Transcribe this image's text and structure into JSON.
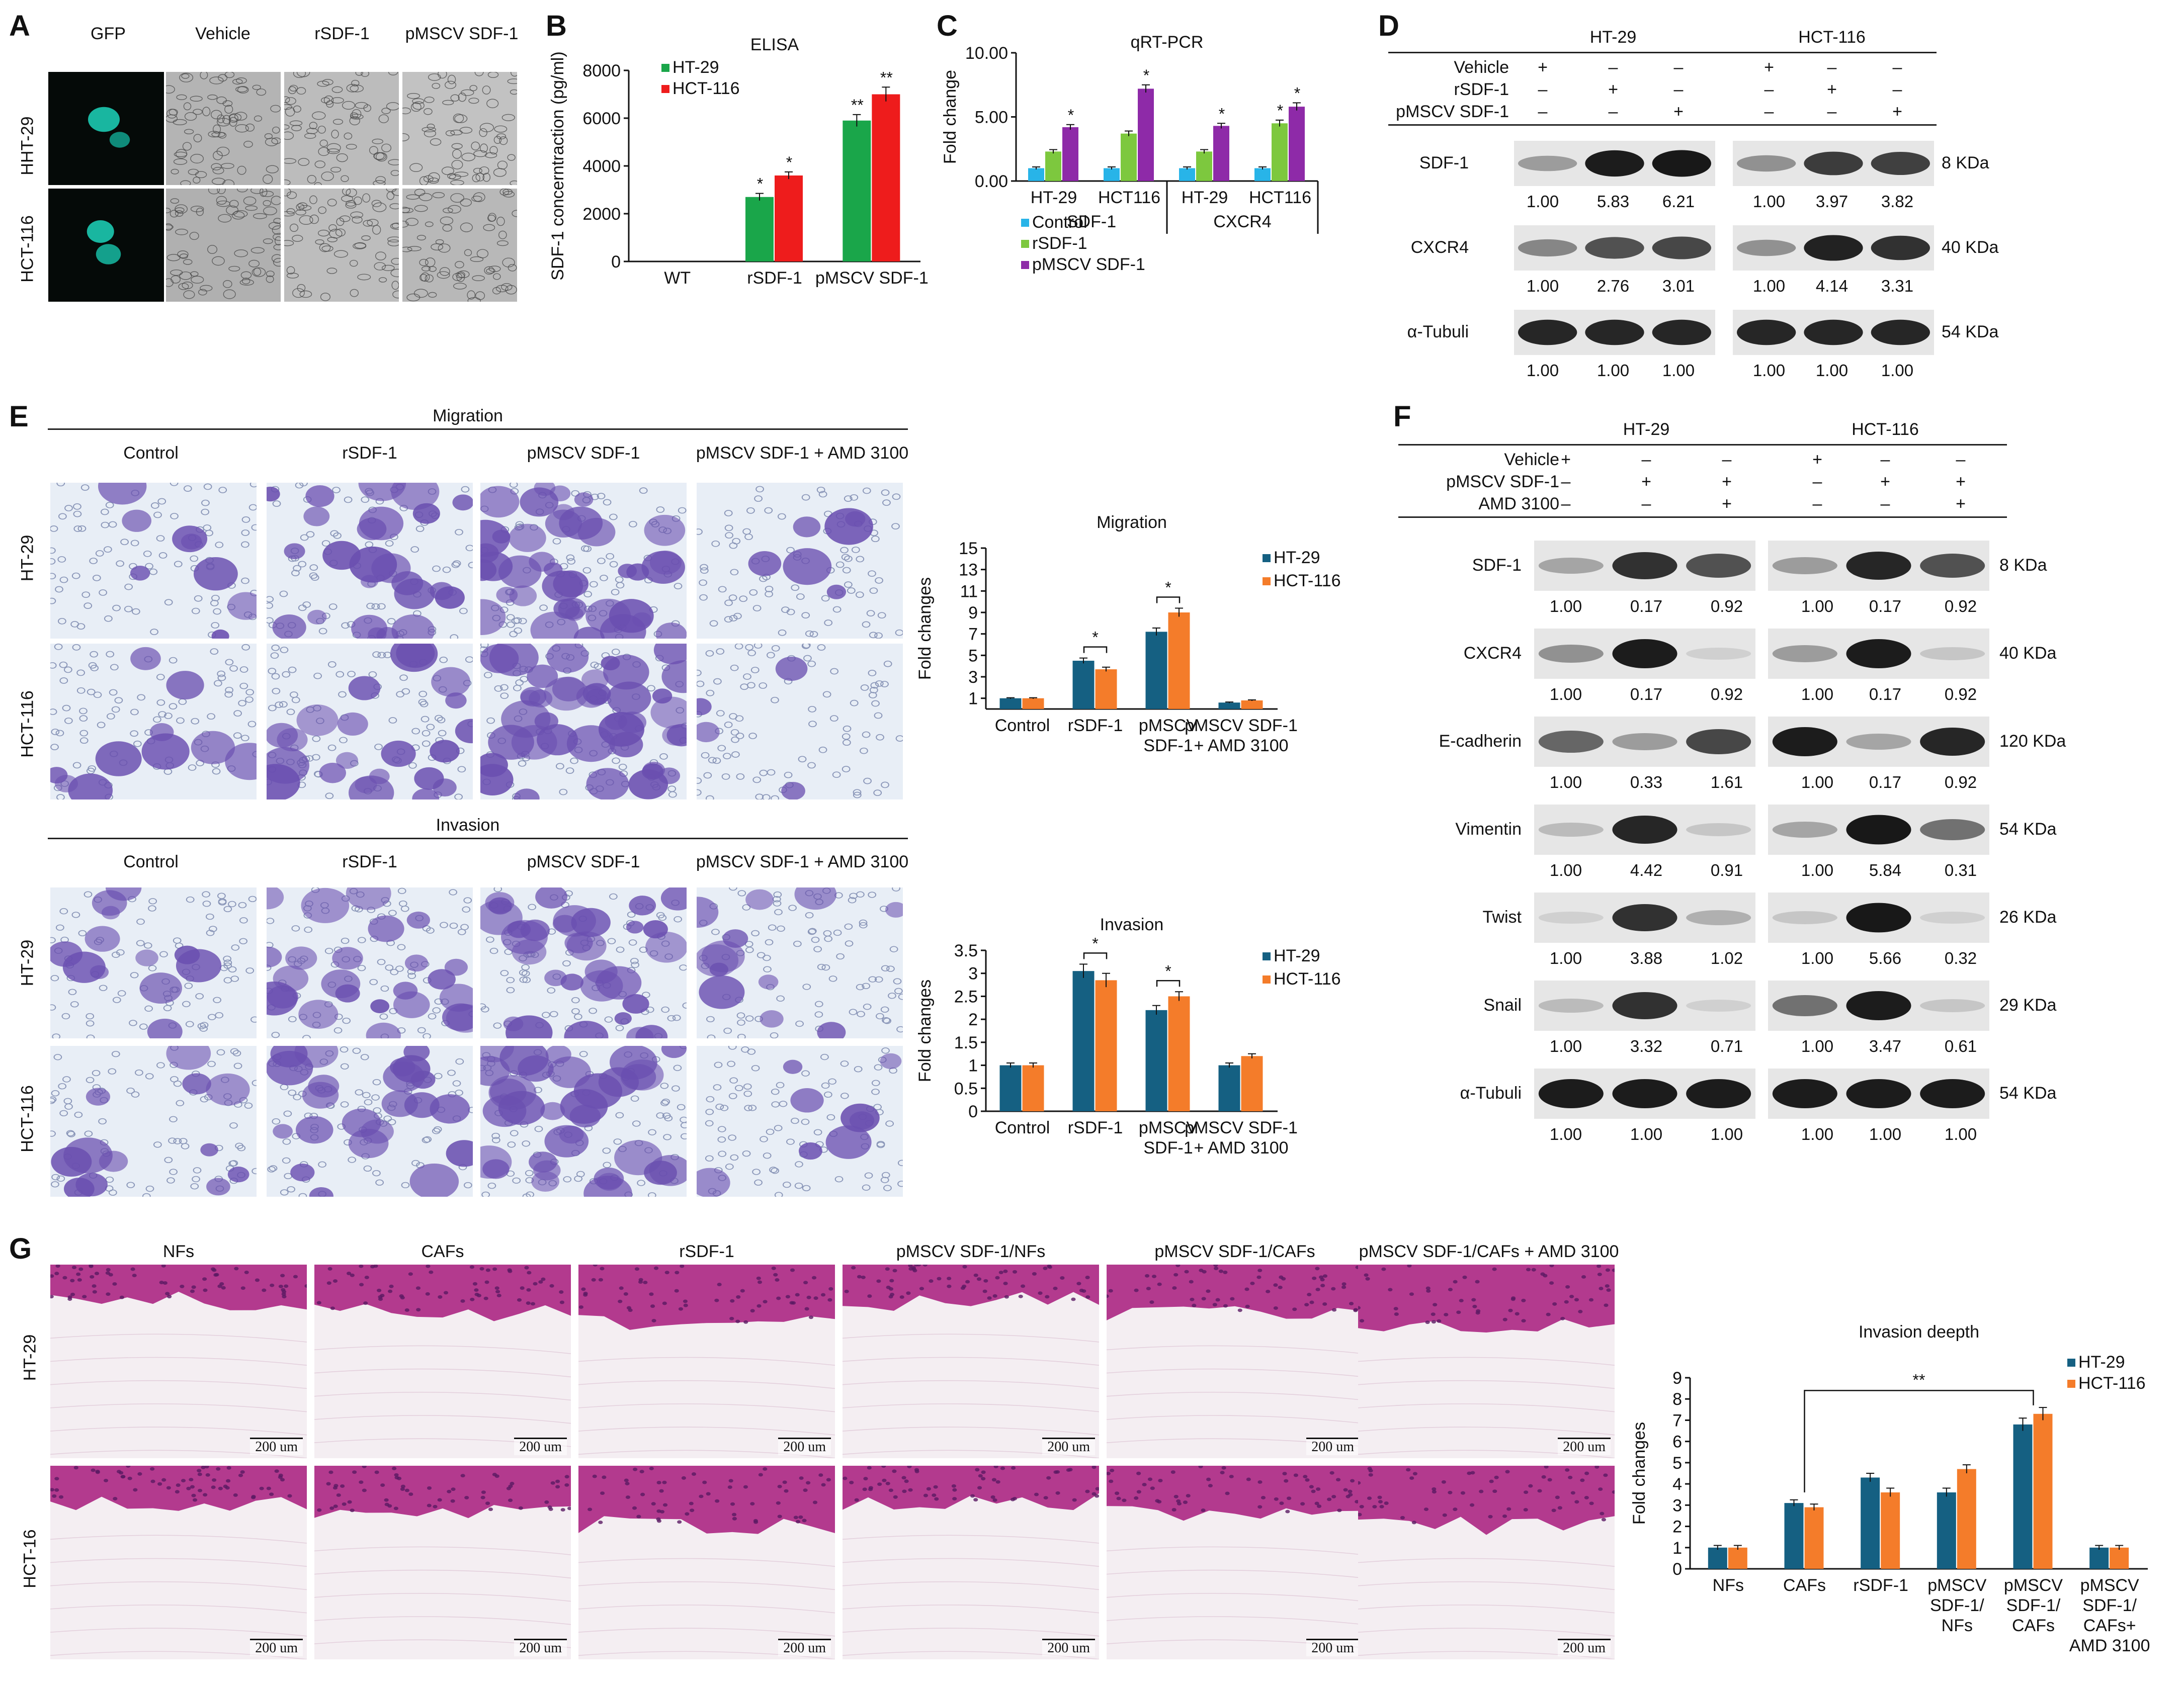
{
  "panels": {
    "A": {
      "letter": "A",
      "columns": [
        "GFP",
        "Vehicle",
        "rSDF-1",
        "pMSCV SDF-1"
      ],
      "rows": [
        "HHT-29",
        "HCT-116"
      ]
    },
    "B": {
      "letter": "B"
    },
    "C": {
      "letter": "C"
    },
    "D": {
      "letter": "D",
      "groups": [
        "HT-29",
        "HCT-116"
      ],
      "treatments": [
        {
          "name": "Vehicle",
          "marks": [
            "+",
            "–",
            "–",
            "+",
            "–",
            "–"
          ]
        },
        {
          "name": "rSDF-1",
          "marks": [
            "–",
            "+",
            "–",
            "–",
            "+",
            "–"
          ]
        },
        {
          "name": "pMSCV SDF-1",
          "marks": [
            "–",
            "–",
            "+",
            "–",
            "–",
            "+"
          ]
        }
      ],
      "blots": [
        {
          "protein": "SDF-1",
          "size": "8 KDa",
          "values": [
            "1.00",
            "5.83",
            "6.21",
            "1.00",
            "3.97",
            "3.82"
          ],
          "intensity": [
            0.35,
            0.95,
            0.97,
            0.4,
            0.8,
            0.78
          ]
        },
        {
          "protein": "CXCR4",
          "size": "40 KDa",
          "values": [
            "1.00",
            "2.76",
            "3.01",
            "1.00",
            "4.14",
            "3.31"
          ],
          "intensity": [
            0.45,
            0.7,
            0.75,
            0.4,
            0.92,
            0.85
          ]
        },
        {
          "protein": "α-Tubuli",
          "size": "54 KDa",
          "values": [
            "1.00",
            "1.00",
            "1.00",
            "1.00",
            "1.00",
            "1.00"
          ],
          "intensity": [
            0.9,
            0.9,
            0.9,
            0.9,
            0.9,
            0.9
          ]
        }
      ]
    },
    "E": {
      "letter": "E",
      "migration_title": "Migration",
      "invasion_title": "Invasion",
      "columns": [
        "Control",
        "rSDF-1",
        "pMSCV SDF-1",
        "pMSCV SDF-1 + AMD 3100"
      ],
      "rows": [
        "HT-29",
        "HCT-116"
      ]
    },
    "F": {
      "letter": "F",
      "groups": [
        "HT-29",
        "HCT-116"
      ],
      "treatments": [
        {
          "name": "Vehicle",
          "marks": [
            "+",
            "–",
            "–",
            "+",
            "–",
            "–"
          ]
        },
        {
          "name": "pMSCV SDF-1",
          "marks": [
            "–",
            "+",
            "+",
            "–",
            "+",
            "+"
          ]
        },
        {
          "name": "AMD 3100",
          "marks": [
            "–",
            "–",
            "+",
            "–",
            "–",
            "+"
          ]
        }
      ],
      "blots": [
        {
          "protein": "SDF-1",
          "size": "8 KDa",
          "values": [
            "1.00",
            "0.17",
            "0.92",
            "1.00",
            "0.17",
            "0.92"
          ],
          "intensity": [
            0.3,
            0.85,
            0.7,
            0.35,
            0.9,
            0.7
          ]
        },
        {
          "protein": "CXCR4",
          "size": "40 KDa",
          "values": [
            "1.00",
            "0.17",
            "0.92",
            "1.00",
            "0.17",
            "0.92"
          ],
          "intensity": [
            0.4,
            0.95,
            0.1,
            0.35,
            0.95,
            0.15
          ]
        },
        {
          "protein": "E-cadherin",
          "size": "120 KDa",
          "values": [
            "1.00",
            "0.33",
            "1.61",
            "1.00",
            "0.17",
            "0.92"
          ],
          "intensity": [
            0.6,
            0.35,
            0.75,
            0.95,
            0.3,
            0.9
          ]
        },
        {
          "protein": "Vimentin",
          "size": "54 KDa",
          "values": [
            "1.00",
            "4.42",
            "0.91",
            "1.00",
            "5.84",
            "0.31"
          ],
          "intensity": [
            0.2,
            0.9,
            0.15,
            0.3,
            0.97,
            0.55
          ]
        },
        {
          "protein": "Twist",
          "size": "26 KDa",
          "values": [
            "1.00",
            "3.88",
            "1.02",
            "1.00",
            "5.66",
            "0.32"
          ],
          "intensity": [
            0.1,
            0.85,
            0.25,
            0.15,
            0.97,
            0.1
          ]
        },
        {
          "protein": "Snail",
          "size": "29 KDa",
          "values": [
            "1.00",
            "3.32",
            "0.71",
            "1.00",
            "3.47",
            "0.61"
          ],
          "intensity": [
            0.2,
            0.85,
            0.1,
            0.55,
            0.95,
            0.15
          ]
        },
        {
          "protein": "α-Tubuli",
          "size": "54 KDa",
          "values": [
            "1.00",
            "1.00",
            "1.00",
            "1.00",
            "1.00",
            "1.00"
          ],
          "intensity": [
            0.95,
            0.95,
            0.95,
            0.95,
            0.95,
            0.95
          ]
        }
      ]
    },
    "G": {
      "letter": "G",
      "columns": [
        "NFs",
        "CAFs",
        "rSDF-1",
        "pMSCV SDF-1/NFs",
        "pMSCV SDF-1/CAFs",
        "pMSCV SDF-1/CAFs + AMD 3100"
      ],
      "rows": [
        "HT-29",
        "HCT-16"
      ],
      "scale_bar": "200 um"
    }
  },
  "colors": {
    "ht29_elisa": "#1aa64a",
    "hct116_elisa": "#ee1c1c",
    "control": "#28b4e8",
    "rsdf": "#7dc83e",
    "pmscv": "#8e2aa8",
    "ht29": "#156082",
    "hct116": "#f47c2a",
    "gfp_bg": "#050a08",
    "gfp_cell": "#19b6a0",
    "he_tissue": "#b33a8e",
    "he_bg": "#f4eef2",
    "stain_cell": "#6a4fb0",
    "stain_bg": "#e8eef6"
  },
  "chart_data": [
    {
      "id": "B",
      "type": "bar",
      "title": "ELISA",
      "categories": [
        "WT",
        "rSDF-1",
        "pMSCV SDF-1"
      ],
      "series": [
        {
          "name": "HT-29",
          "values": [
            0,
            2700,
            5900
          ],
          "errors": [
            0,
            150,
            250
          ],
          "sig": [
            "",
            "*",
            "**"
          ]
        },
        {
          "name": "HCT-116",
          "values": [
            0,
            3600,
            7000
          ],
          "errors": [
            0,
            150,
            300
          ],
          "sig": [
            "",
            "*",
            "**"
          ]
        }
      ],
      "ylabel": "SDF-1 concerntraction (pg/ml)",
      "xlabel": "",
      "ylim": [
        0,
        8000
      ],
      "yticks": [
        0,
        2000,
        4000,
        6000,
        8000
      ],
      "legend": "top-left"
    },
    {
      "id": "C",
      "type": "bar",
      "title": "qRT-PCR",
      "categories": [
        "HT-29",
        "HCT116",
        "HT-29",
        "HCT116"
      ],
      "groups": [
        "SDF-1",
        "CXCR4"
      ],
      "series": [
        {
          "name": "Control",
          "values": [
            1.0,
            1.0,
            1.0,
            1.0
          ],
          "errors": [
            0.1,
            0.1,
            0.1,
            0.1
          ],
          "sig": [
            "",
            "",
            "",
            ""
          ]
        },
        {
          "name": "rSDF-1",
          "values": [
            2.3,
            3.7,
            2.3,
            4.5
          ],
          "errors": [
            0.15,
            0.2,
            0.15,
            0.25
          ],
          "sig": [
            "",
            "",
            "",
            "*"
          ]
        },
        {
          "name": "pMSCV SDF-1",
          "values": [
            4.2,
            7.2,
            4.3,
            5.8
          ],
          "errors": [
            0.2,
            0.3,
            0.2,
            0.3
          ],
          "sig": [
            "*",
            "*",
            "*",
            "*"
          ]
        }
      ],
      "ylabel": "Fold change",
      "ylim": [
        0,
        10
      ],
      "yticks": [
        "0.00",
        "5.00",
        "10.00"
      ],
      "ytick_values": [
        0,
        5,
        10
      ],
      "legend": "bottom"
    },
    {
      "id": "E-migration",
      "type": "bar",
      "title": "Migration",
      "categories": [
        "Control",
        "rSDF-1",
        "pMSCV SDF-1",
        "pMSCV SDF-1 + AMD 3100"
      ],
      "series": [
        {
          "name": "HT-29",
          "values": [
            1.0,
            4.5,
            7.2,
            0.6
          ],
          "errors": [
            0.05,
            0.25,
            0.35,
            0.05
          ]
        },
        {
          "name": "HCT-116",
          "values": [
            1.0,
            3.7,
            9.0,
            0.8
          ],
          "errors": [
            0.05,
            0.2,
            0.4,
            0.05
          ]
        }
      ],
      "brackets": [
        1,
        2
      ],
      "ylabel": "Fold changes",
      "ylim": [
        0,
        15
      ],
      "yticks": [
        1,
        3,
        5,
        7,
        9,
        11,
        13,
        15
      ],
      "legend": "right"
    },
    {
      "id": "E-invasion",
      "type": "bar",
      "title": "Invasion",
      "categories": [
        "Control",
        "rSDF-1",
        "pMSCV SDF-1",
        "pMSCV SDF-1 + AMD 3100"
      ],
      "series": [
        {
          "name": "HT-29",
          "values": [
            1.0,
            3.05,
            2.2,
            1.0
          ],
          "errors": [
            0.05,
            0.15,
            0.1,
            0.05
          ]
        },
        {
          "name": "HCT-116",
          "values": [
            1.0,
            2.85,
            2.5,
            1.2
          ],
          "errors": [
            0.05,
            0.15,
            0.1,
            0.05
          ]
        }
      ],
      "brackets": [
        1,
        2
      ],
      "ylabel": "Fold changes",
      "ylim": [
        0,
        3.5
      ],
      "yticks": [
        0,
        0.5,
        1,
        1.5,
        2,
        2.5,
        3,
        3.5
      ],
      "legend": "right"
    },
    {
      "id": "G",
      "type": "bar",
      "title": "Invasion deepth",
      "categories": [
        "NFs",
        "CAFs",
        "rSDF-1",
        "pMSCV SDF-1/ NFs",
        "pMSCV SDF-1/ CAFs",
        "pMSCV SDF-1/ CAFs+ AMD 3100"
      ],
      "series": [
        {
          "name": "HT-29",
          "values": [
            1.0,
            3.1,
            4.3,
            3.6,
            6.8,
            1.0
          ],
          "errors": [
            0.1,
            0.15,
            0.2,
            0.2,
            0.3,
            0.1
          ]
        },
        {
          "name": "HCT-116",
          "values": [
            1.0,
            2.9,
            3.6,
            4.7,
            7.3,
            1.0
          ],
          "errors": [
            0.1,
            0.15,
            0.2,
            0.2,
            0.3,
            0.1
          ]
        }
      ],
      "sig_bracket": {
        "from": 1,
        "to": 4,
        "label": "**"
      },
      "ylabel": "Fold changes",
      "ylim": [
        0,
        9
      ],
      "yticks": [
        0,
        1,
        2,
        3,
        4,
        5,
        6,
        7,
        8,
        9
      ],
      "legend": "top-right"
    }
  ]
}
